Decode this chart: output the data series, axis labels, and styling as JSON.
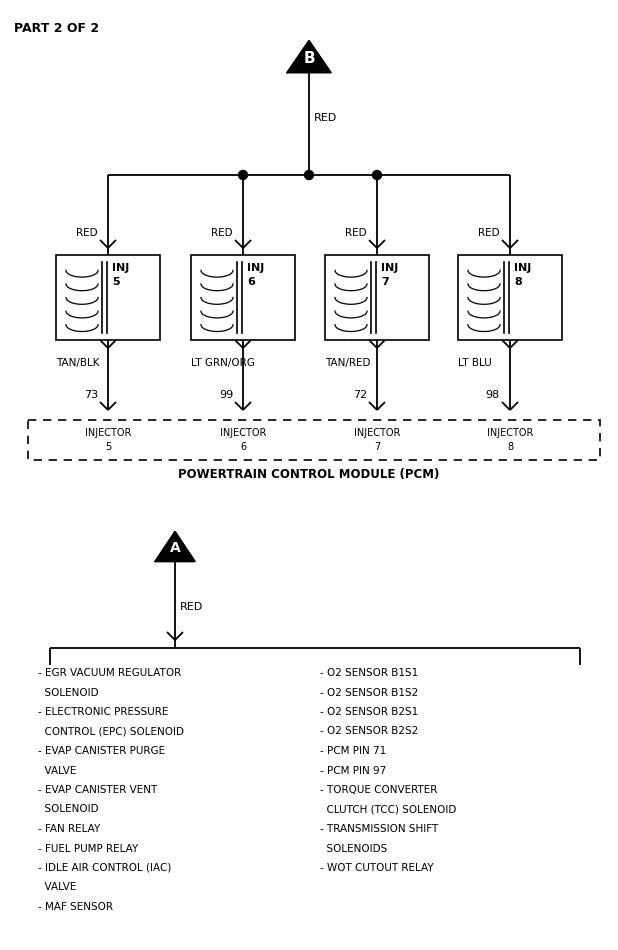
{
  "bg_color": "#ffffff",
  "title": "PART 2 OF 2",
  "injectors": [
    {
      "label": "INJ",
      "num": "5",
      "wire_top": "RED",
      "wire_bot": "TAN/BLK",
      "pin": "73",
      "pcm1": "INJECTOR",
      "pcm2": "5"
    },
    {
      "label": "INJ",
      "num": "6",
      "wire_top": "RED",
      "wire_bot": "LT GRN/ORG",
      "pin": "99",
      "pcm1": "INJECTOR",
      "pcm2": "6"
    },
    {
      "label": "INJ",
      "num": "7",
      "wire_top": "RED",
      "wire_bot": "TAN/RED",
      "pin": "72",
      "pcm1": "INJECTOR",
      "pcm2": "7"
    },
    {
      "label": "INJ",
      "num": "8",
      "wire_top": "RED",
      "wire_bot": "LT BLU",
      "pin": "98",
      "pcm1": "INJECTOR",
      "pcm2": "8"
    }
  ],
  "left_list": [
    "- EGR VACUUM REGULATOR",
    "  SOLENOID",
    "- ELECTRONIC PRESSURE",
    "  CONTROL (EPC) SOLENOID",
    "- EVAP CANISTER PURGE",
    "  VALVE",
    "- EVAP CANISTER VENT",
    "  SOLENOID",
    "- FAN RELAY",
    "- FUEL PUMP RELAY",
    "- IDLE AIR CONTROL (IAC)",
    "  VALVE",
    "- MAF SENSOR"
  ],
  "right_list": [
    "- O2 SENSOR B1S1",
    "- O2 SENSOR B1S2",
    "- O2 SENSOR B2S1",
    "- O2 SENSOR B2S2",
    "- PCM PIN 71",
    "- PCM PIN 97",
    "- TORQUE CONVERTER",
    "  CLUTCH (TCC) SOLENOID",
    "- TRANSMISSION SHIFT",
    "  SOLENOIDS",
    "- WOT CUTOUT RELAY"
  ]
}
